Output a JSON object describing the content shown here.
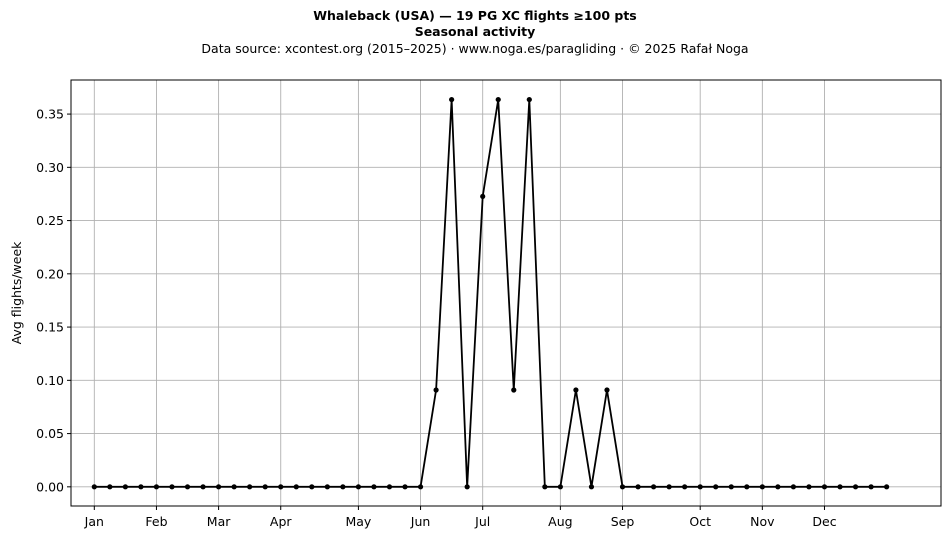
{
  "header": {
    "title": "Whaleback (USA)  —  19 PG XC flights ≥100 pts",
    "subtitle": "Seasonal activity",
    "source": "Data source: xcontest.org (2015–2025)  ·  www.noga.es/paragliding  ·  © 2025 Rafał Noga"
  },
  "chart_data": {
    "type": "line",
    "title": "Whaleback (USA)  —  19 PG XC flights ≥100 pts",
    "subtitle": "Seasonal activity",
    "xlabel": "",
    "ylabel": "Avg flights/week",
    "x_unit": "week of year",
    "xlim": [
      -1.5,
      54.5
    ],
    "ylim": [
      -0.018,
      0.382
    ],
    "yticks": [
      0.0,
      0.05,
      0.1,
      0.15,
      0.2,
      0.25,
      0.3,
      0.35
    ],
    "ytick_labels": [
      "0.00",
      "0.05",
      "0.10",
      "0.15",
      "0.20",
      "0.25",
      "0.30",
      "0.35"
    ],
    "xticks": [
      0,
      4,
      8,
      12,
      17,
      21,
      25,
      30,
      34,
      39,
      43,
      47
    ],
    "xtick_labels": [
      "Jan",
      "Feb",
      "Mar",
      "Apr",
      "May",
      "Jun",
      "Jul",
      "Aug",
      "Sep",
      "Oct",
      "Nov",
      "Dec"
    ],
    "grid": true,
    "color": "#000000",
    "x": [
      0,
      1,
      2,
      3,
      4,
      5,
      6,
      7,
      8,
      9,
      10,
      11,
      12,
      13,
      14,
      15,
      16,
      17,
      18,
      19,
      20,
      21,
      22,
      23,
      24,
      25,
      26,
      27,
      28,
      29,
      30,
      31,
      32,
      33,
      34,
      35,
      36,
      37,
      38,
      39,
      40,
      41,
      42,
      43,
      44,
      45,
      46,
      47,
      48,
      49,
      50,
      51
    ],
    "values": [
      0,
      0,
      0,
      0,
      0,
      0,
      0,
      0,
      0,
      0,
      0,
      0,
      0,
      0,
      0,
      0,
      0,
      0,
      0,
      0,
      0,
      0,
      0.0909,
      0.3636,
      0,
      0.2727,
      0.3636,
      0.0909,
      0.3636,
      0,
      0,
      0.0909,
      0,
      0.0909,
      0,
      0,
      0,
      0,
      0,
      0,
      0,
      0,
      0,
      0,
      0,
      0,
      0,
      0,
      0,
      0,
      0,
      0
    ]
  }
}
